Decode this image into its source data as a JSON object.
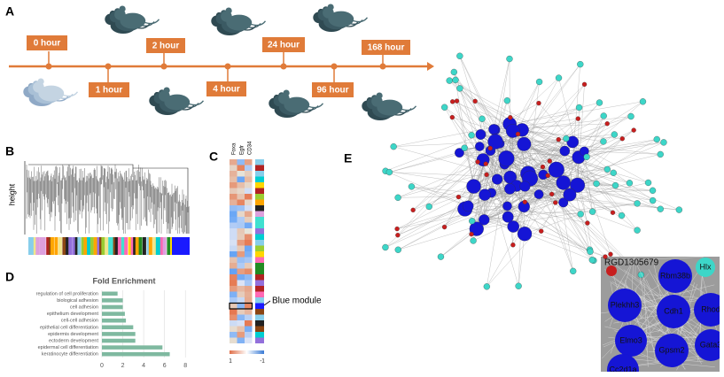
{
  "panel_labels": [
    "A",
    "B",
    "C",
    "D",
    "E"
  ],
  "timeline": {
    "timepoints": [
      "0 hour",
      "1 hour",
      "2 hour",
      "4 hour",
      "24 hour",
      "96 hour",
      "168 hour"
    ]
  },
  "dendrogram": {
    "y_label": "height"
  },
  "heatmap": {
    "columns": [
      "Foxa",
      "Egfr",
      "CD34"
    ],
    "annotation": "Blue module",
    "scale_labels": [
      1,
      -1
    ]
  },
  "chart_data": {
    "type": "barh",
    "title": "Fold Enrichment",
    "categories": [
      "regulation of cell proliferation",
      "biological adhesion",
      "cell adhesion",
      "epithelium development",
      "cell-cell adhesion",
      "epithelial cell differentiation",
      "epidermis development",
      "ectoderm development",
      "epidermal cell differentiation",
      "keratinocyte differentiation"
    ],
    "values": [
      1.5,
      2,
      2,
      2.2,
      2.3,
      3,
      3.2,
      3.2,
      5.8,
      6.5
    ],
    "color": "#7fb9a0",
    "xlim": [
      0,
      9
    ],
    "xticks": [
      0,
      2,
      4,
      6,
      8
    ],
    "grid": true
  },
  "network": {
    "inset_labels": [
      "RGD1305679",
      "Rbm38b",
      "Hlx",
      "Plekhh3",
      "Cdh1",
      "Rhod",
      "Elmo3",
      "Gpsm2",
      "Gata3",
      "Cc2d1a"
    ]
  }
}
